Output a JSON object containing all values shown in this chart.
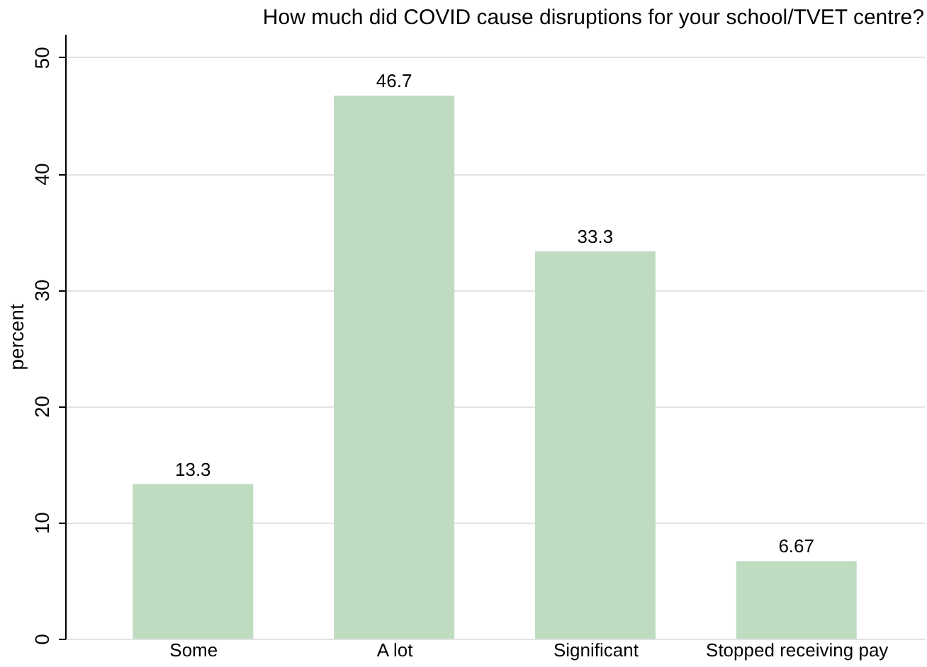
{
  "chart_data": {
    "type": "bar",
    "title": "How much did COVID cause disruptions for your school/TVET centre?",
    "categories": [
      "Some",
      "A lot",
      "Significant",
      "Stopped receiving pay"
    ],
    "values": [
      13.3,
      46.7,
      33.3,
      6.67
    ],
    "color": "#bfdcc0",
    "ylabel": "percent",
    "ylim": [
      0,
      52
    ],
    "yticks": [
      0,
      10,
      20,
      30,
      40,
      50
    ],
    "grid": "y",
    "data_labels": true
  }
}
